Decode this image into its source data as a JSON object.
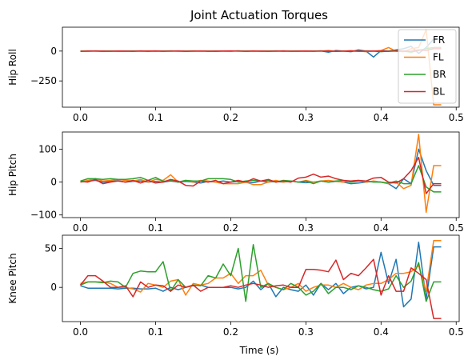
{
  "chart_data": {
    "type": "line",
    "title": "Joint Actuation Torques",
    "xlabel": "Time (s)",
    "xlim": [
      -0.024,
      0.504
    ],
    "xticks": [
      0.0,
      0.1,
      0.2,
      0.3,
      0.4,
      0.5
    ],
    "xtick_labels": [
      "0.0",
      "0.1",
      "0.2",
      "0.3",
      "0.4",
      "0.5"
    ],
    "x": [
      0.0,
      0.01,
      0.02,
      0.03,
      0.04,
      0.05,
      0.06,
      0.07,
      0.08,
      0.09,
      0.1,
      0.11,
      0.12,
      0.13,
      0.14,
      0.15,
      0.16,
      0.17,
      0.18,
      0.19,
      0.2,
      0.21,
      0.22,
      0.23,
      0.24,
      0.25,
      0.26,
      0.27,
      0.28,
      0.29,
      0.3,
      0.31,
      0.32,
      0.33,
      0.34,
      0.35,
      0.36,
      0.37,
      0.38,
      0.39,
      0.4,
      0.41,
      0.42,
      0.43,
      0.44,
      0.45,
      0.46,
      0.47,
      0.48
    ],
    "legend": {
      "placement": "top-right",
      "entries": [
        "FR",
        "FL",
        "BR",
        "BL"
      ]
    },
    "colors": {
      "FR": "#1f77b4",
      "FL": "#ff7f0e",
      "BR": "#2ca02c",
      "BL": "#d62728"
    },
    "subplots": [
      {
        "ylabel": "Hip Roll",
        "ylim": [
          -470,
          200
        ],
        "yticks": [
          0,
          -250
        ],
        "ytick_labels": [
          "0",
          "−250"
        ],
        "series": [
          {
            "name": "FR",
            "values": [
              0,
              2,
              1,
              -2,
              0,
              1,
              0,
              -1,
              2,
              0,
              -1,
              1,
              0,
              2,
              -1,
              0,
              1,
              0,
              -2,
              1,
              0,
              2,
              -1,
              0,
              1,
              -1,
              0,
              2,
              0,
              -1,
              1,
              0,
              2,
              -10,
              5,
              0,
              -5,
              10,
              0,
              -50,
              5,
              0,
              10,
              20,
              40,
              -20,
              30,
              100,
              100
            ]
          },
          {
            "name": "FL",
            "values": [
              0,
              1,
              0,
              -1,
              1,
              0,
              -2,
              1,
              0,
              2,
              0,
              -1,
              1,
              0,
              -1,
              2,
              0,
              1,
              -1,
              0,
              1,
              0,
              -1,
              2,
              0,
              1,
              -1,
              0,
              1,
              0,
              -2,
              1,
              0,
              5,
              -3,
              0,
              3,
              0,
              -5,
              0,
              5,
              30,
              0,
              -5,
              20,
              30,
              180,
              -450,
              -450
            ]
          },
          {
            "name": "BR",
            "values": [
              0,
              -1,
              2,
              0,
              1,
              -1,
              0,
              1,
              0,
              -2,
              1,
              0,
              2,
              0,
              -1,
              1,
              0,
              -1,
              1,
              0,
              -1,
              2,
              0,
              1,
              -1,
              0,
              2,
              -1,
              0,
              1,
              -1,
              0,
              2,
              0,
              -2,
              1,
              0,
              -1,
              2,
              0,
              -5,
              0,
              5,
              0,
              -10,
              5,
              20,
              30,
              30
            ]
          },
          {
            "name": "BL",
            "values": [
              -2,
              0,
              1,
              0,
              -1,
              1,
              0,
              -1,
              1,
              0,
              2,
              -1,
              0,
              1,
              -1,
              0,
              1,
              -1,
              0,
              1,
              2,
              0,
              -1,
              1,
              0,
              -1,
              0,
              1,
              -1,
              0,
              1,
              -1,
              0,
              1,
              -1,
              0,
              2,
              -1,
              0,
              1,
              0,
              -2,
              1,
              0,
              -2,
              10,
              5,
              20,
              20
            ]
          }
        ]
      },
      {
        "ylabel": "Hip Pitch",
        "ylim": [
          -108,
          152
        ],
        "yticks": [
          100,
          0,
          -100
        ],
        "ytick_labels": [
          "100",
          "0",
          "−100"
        ],
        "series": [
          {
            "name": "FR",
            "values": [
              0,
              3,
              5,
              0,
              2,
              4,
              0,
              2,
              3,
              0,
              2,
              0,
              3,
              0,
              2,
              0,
              -3,
              2,
              0,
              3,
              0,
              2,
              0,
              -2,
              3,
              0,
              2,
              0,
              3,
              0,
              -2,
              0,
              3,
              0,
              2,
              0,
              -5,
              -3,
              0,
              2,
              0,
              -5,
              -20,
              10,
              -5,
              100,
              35,
              -10,
              -10
            ]
          },
          {
            "name": "FL",
            "values": [
              0,
              5,
              10,
              3,
              5,
              8,
              5,
              3,
              8,
              0,
              8,
              5,
              22,
              0,
              5,
              0,
              5,
              3,
              0,
              -5,
              -5,
              -5,
              0,
              -8,
              -8,
              0,
              5,
              0,
              3,
              0,
              5,
              0,
              3,
              5,
              2,
              0,
              3,
              5,
              0,
              3,
              0,
              -5,
              0,
              -20,
              -10,
              145,
              -92,
              50,
              50
            ]
          },
          {
            "name": "BR",
            "values": [
              3,
              10,
              10,
              8,
              10,
              8,
              8,
              10,
              14,
              5,
              14,
              2,
              5,
              0,
              5,
              3,
              3,
              10,
              10,
              10,
              8,
              0,
              3,
              5,
              3,
              5,
              0,
              5,
              3,
              0,
              3,
              -5,
              3,
              0,
              3,
              5,
              0,
              3,
              3,
              0,
              0,
              -3,
              3,
              -5,
              -5,
              50,
              -15,
              -30,
              -30
            ]
          },
          {
            "name": "BL",
            "values": [
              2,
              0,
              8,
              -5,
              0,
              3,
              0,
              5,
              -3,
              5,
              -3,
              0,
              8,
              3,
              -10,
              -12,
              3,
              0,
              5,
              -5,
              0,
              5,
              0,
              10,
              3,
              8,
              0,
              3,
              0,
              12,
              15,
              24,
              15,
              18,
              10,
              5,
              3,
              5,
              3,
              12,
              14,
              0,
              -3,
              10,
              35,
              75,
              -35,
              -5,
              -5
            ]
          }
        ]
      },
      {
        "ylabel": "Knee Pitch",
        "ylim": [
          -44,
          67
        ],
        "yticks": [
          50,
          0
        ],
        "ytick_labels": [
          "50",
          "0"
        ],
        "series": [
          {
            "name": "FR",
            "values": [
              2,
              -1,
              -1,
              -1,
              -1,
              -2,
              -1,
              -1,
              -2,
              -2,
              -1,
              -5,
              0,
              -3,
              0,
              2,
              3,
              0,
              0,
              0,
              0,
              -2,
              0,
              8,
              -3,
              5,
              -12,
              0,
              -3,
              -5,
              3,
              -10,
              5,
              -3,
              5,
              -8,
              0,
              2,
              -2,
              0,
              45,
              5,
              36,
              -25,
              -15,
              58,
              -15,
              52,
              52
            ]
          },
          {
            "name": "FL",
            "values": [
              5,
              7,
              7,
              7,
              5,
              0,
              0,
              -2,
              -6,
              5,
              3,
              0,
              8,
              10,
              -10,
              5,
              3,
              5,
              12,
              12,
              18,
              5,
              15,
              15,
              22,
              3,
              0,
              -3,
              0,
              5,
              -5,
              0,
              3,
              3,
              0,
              5,
              0,
              -3,
              3,
              5,
              5,
              10,
              18,
              18,
              20,
              28,
              -5,
              60,
              60
            ]
          },
          {
            "name": "BR",
            "values": [
              3,
              7,
              7,
              6,
              8,
              7,
              0,
              18,
              21,
              20,
              20,
              33,
              -5,
              10,
              0,
              3,
              2,
              15,
              12,
              30,
              15,
              50,
              -18,
              55,
              0,
              5,
              0,
              -3,
              5,
              0,
              -10,
              -5,
              5,
              -8,
              0,
              0,
              -3,
              2,
              0,
              -3,
              -5,
              -2,
              15,
              0,
              8,
              32,
              -18,
              7,
              7
            ]
          },
          {
            "name": "BL",
            "values": [
              3,
              15,
              15,
              8,
              0,
              0,
              2,
              -12,
              7,
              0,
              3,
              2,
              -5,
              3,
              0,
              3,
              -5,
              0,
              0,
              0,
              2,
              0,
              3,
              5,
              3,
              0,
              2,
              3,
              0,
              0,
              23,
              23,
              22,
              20,
              35,
              10,
              18,
              15,
              25,
              36,
              -10,
              15,
              -5,
              -5,
              25,
              18,
              10,
              -40,
              -40
            ]
          }
        ]
      }
    ]
  }
}
